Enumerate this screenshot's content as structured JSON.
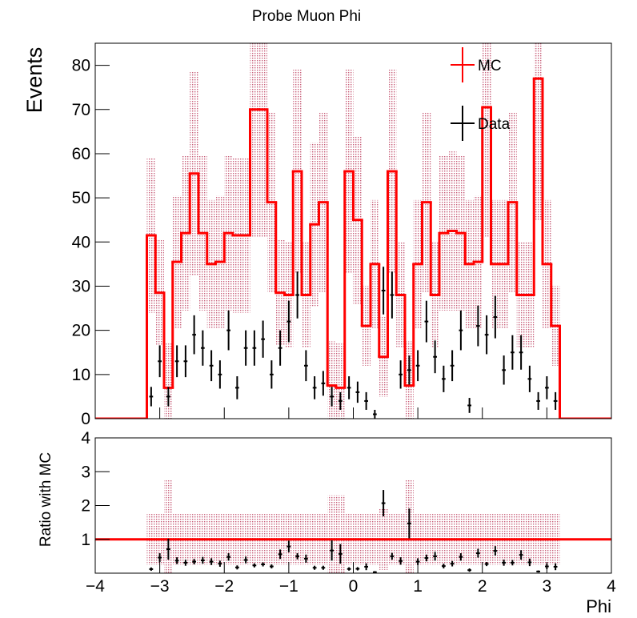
{
  "chart_data": [
    {
      "type": "histogram",
      "title": "Probe Muon Phi",
      "y_label": "Events",
      "bins": [
        -3.2,
        -3.0667,
        -2.9333,
        -2.8,
        -2.6667,
        -2.5333,
        -2.4,
        -2.2667,
        -2.1333,
        -2.0,
        -1.8667,
        -1.7333,
        -1.6,
        -1.4667,
        -1.3333,
        -1.2,
        -1.0667,
        -0.9333,
        -0.8,
        -0.6667,
        -0.5333,
        -0.4,
        -0.2667,
        -0.1333,
        0,
        0.1333,
        0.2667,
        0.4,
        0.5333,
        0.6667,
        0.8,
        0.9333,
        1.0667,
        1.2,
        1.3333,
        1.4667,
        1.6,
        1.7333,
        1.8667,
        2.0,
        2.1333,
        2.2667,
        2.4,
        2.5333,
        2.6667,
        2.8,
        2.9333,
        3.0667,
        3.2
      ],
      "xlim": [
        -4,
        4
      ],
      "ylim": [
        0,
        85
      ],
      "yticks": [
        0,
        10,
        20,
        30,
        40,
        50,
        60,
        70,
        80
      ],
      "legend": "top-right",
      "band_color": "#c8607a",
      "series": [
        {
          "name": "MC",
          "color": "#ff0000",
          "values": [
            41.5,
            28.5,
            7,
            35.5,
            42,
            55.5,
            42,
            35,
            35.5,
            42,
            41.5,
            41.5,
            70,
            70,
            49,
            28.5,
            28,
            56,
            28,
            44,
            49,
            7.5,
            7,
            56,
            45,
            21,
            35,
            14,
            56,
            28,
            7.5,
            35,
            49,
            28,
            42,
            42.5,
            42,
            35,
            35.5,
            70.5,
            35,
            35,
            49,
            28,
            28,
            77,
            35,
            21
          ],
          "errors": [
            17.5,
            12,
            10,
            15,
            17.5,
            23,
            17.5,
            14.5,
            15,
            17.5,
            17.5,
            17.5,
            29,
            29,
            20.5,
            12,
            12,
            23,
            12,
            18.5,
            20.5,
            10,
            10,
            23,
            19,
            9,
            14.5,
            9,
            23,
            12,
            10,
            14.5,
            20.5,
            12,
            17.5,
            18,
            17.5,
            14.5,
            15,
            29.5,
            14.5,
            14.5,
            20.5,
            12,
            12,
            32,
            14.5,
            9
          ]
        },
        {
          "name": "Data",
          "color": "#000000",
          "values": [
            5,
            13,
            5,
            13,
            13,
            19,
            16,
            12,
            10,
            20,
            7,
            16,
            16,
            18,
            10,
            16,
            22,
            28,
            12,
            7,
            8,
            5,
            4,
            7,
            6,
            4,
            1,
            29,
            28,
            10,
            11,
            12,
            22,
            14,
            9,
            12,
            20,
            3,
            21,
            19,
            23,
            11,
            15,
            15,
            9,
            4,
            7,
            4
          ],
          "errors": [
            2.2,
            3.6,
            2.2,
            3.6,
            3.6,
            4.4,
            4,
            3.5,
            3.2,
            4.5,
            2.6,
            4,
            4,
            4.2,
            3.2,
            4,
            4.7,
            5.3,
            3.5,
            2.6,
            2.8,
            2.2,
            2,
            2.6,
            2.4,
            2,
            1,
            5.4,
            5.3,
            3.2,
            3.3,
            3.5,
            4.7,
            3.7,
            3,
            3.5,
            4.5,
            1.7,
            4.6,
            4.4,
            4.8,
            3.3,
            3.9,
            3.9,
            3,
            2,
            2.6,
            2
          ]
        }
      ]
    },
    {
      "type": "ratio",
      "y_label": "Ratio with MC",
      "x_label": "Phi",
      "xlim": [
        -4,
        4
      ],
      "xticks": [
        {
          "value": -4,
          "label": "−4"
        },
        {
          "value": -3,
          "label": "−3"
        },
        {
          "value": -2,
          "label": "−2"
        },
        {
          "value": -1,
          "label": "−1"
        },
        0,
        1,
        2,
        3,
        4
      ],
      "ylim": [
        0,
        4
      ],
      "yticks": [
        1,
        2,
        3,
        4
      ],
      "reference_line": 1,
      "line_color": "#ff0000",
      "band_color": "#c8607a",
      "color": "#000000",
      "band_errors": [
        0.75,
        0.75,
        1.75,
        0.75,
        0.75,
        0.75,
        0.75,
        0.75,
        0.75,
        0.75,
        0.75,
        0.75,
        0.75,
        0.75,
        0.75,
        0.75,
        0.75,
        0.75,
        0.75,
        0.75,
        0.75,
        1.3,
        1.3,
        0.75,
        0.75,
        0.75,
        0.75,
        0.9,
        0.75,
        0.75,
        1.75,
        0.75,
        0.75,
        0.75,
        0.75,
        0.75,
        0.75,
        0.75,
        0.75,
        0.75,
        0.75,
        0.75,
        0.75,
        0.75,
        0.75,
        0.75,
        0.75,
        0.75
      ],
      "values": [
        0.12,
        0.46,
        0.71,
        0.37,
        0.31,
        0.34,
        0.38,
        0.34,
        0.28,
        0.48,
        0.17,
        0.39,
        0.23,
        0.26,
        0.2,
        0.56,
        0.79,
        0.5,
        0.43,
        0.16,
        0.16,
        0.67,
        0.57,
        0.125,
        0.13,
        0.19,
        0.03,
        2.07,
        0.5,
        0.36,
        1.47,
        0.34,
        0.45,
        0.5,
        0.21,
        0.28,
        0.48,
        0.09,
        0.59,
        0.27,
        0.66,
        0.31,
        0.31,
        0.54,
        0.32,
        0.05,
        0.2,
        0.19
      ],
      "errors": [
        0.05,
        0.13,
        0.31,
        0.1,
        0.09,
        0.08,
        0.1,
        0.1,
        0.09,
        0.11,
        0.06,
        0.1,
        0.06,
        0.06,
        0.06,
        0.14,
        0.17,
        0.09,
        0.12,
        0.06,
        0.06,
        0.3,
        0.29,
        0.05,
        0.05,
        0.1,
        0.03,
        0.39,
        0.1,
        0.11,
        0.44,
        0.1,
        0.1,
        0.13,
        0.07,
        0.08,
        0.11,
        0.05,
        0.13,
        0.06,
        0.14,
        0.09,
        0.08,
        0.14,
        0.11,
        0.03,
        0.08,
        0.1
      ]
    }
  ]
}
